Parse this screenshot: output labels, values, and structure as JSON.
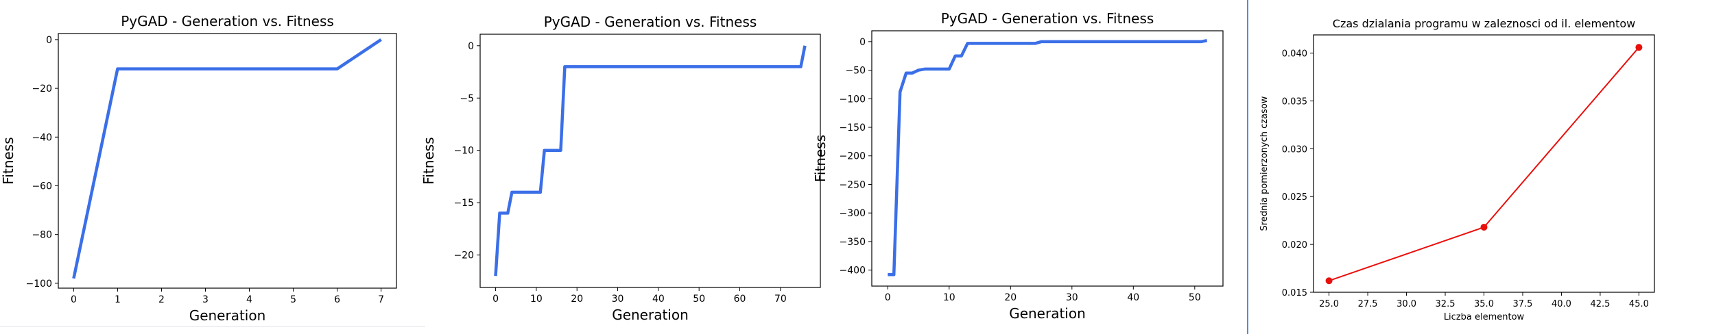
{
  "chart_data": [
    {
      "type": "line",
      "title": "PyGAD - Generation vs. Fitness",
      "xlabel": "Generation",
      "ylabel": "Fitness",
      "xlim": [
        -0.35,
        7.35
      ],
      "ylim": [
        -102,
        2.5
      ],
      "xticks": [
        0,
        1,
        2,
        3,
        4,
        5,
        6,
        7
      ],
      "yticks": [
        0,
        -20,
        -40,
        -60,
        -80,
        -100
      ],
      "color": "#3b6fe8",
      "series": [
        {
          "x": [
            0,
            1,
            2,
            3,
            4,
            5,
            6,
            7
          ],
          "y": [
            -98,
            -12,
            -12,
            -12,
            -12,
            -12,
            -12,
            0
          ]
        }
      ]
    },
    {
      "type": "line",
      "title": "PyGAD - Generation vs. Fitness",
      "xlabel": "Generation",
      "ylabel": "Fitness",
      "xlim": [
        -3.8,
        79.8
      ],
      "ylim": [
        -23.1,
        1.1
      ],
      "xticks": [
        0,
        10,
        20,
        30,
        40,
        50,
        60,
        70
      ],
      "yticks": [
        0,
        -5,
        -10,
        -15,
        -20
      ],
      "color": "#3b6fe8",
      "series": [
        {
          "x": [
            0,
            1,
            2,
            3,
            4,
            5,
            10,
            11,
            12,
            16,
            17,
            75,
            76
          ],
          "y": [
            -22,
            -16,
            -16,
            -16,
            -14,
            -14,
            -14,
            -14,
            -10,
            -10,
            -2,
            -2,
            0
          ]
        }
      ]
    },
    {
      "type": "line",
      "title": "PyGAD - Generation vs. Fitness",
      "xlabel": "Generation",
      "ylabel": "Fitness",
      "xlim": [
        -2.6,
        54.6
      ],
      "ylim": [
        -428,
        19
      ],
      "xticks": [
        0,
        10,
        20,
        30,
        40,
        50
      ],
      "yticks": [
        0,
        -50,
        -100,
        -150,
        -200,
        -250,
        -300,
        -350,
        -400
      ],
      "color": "#3b6fe8",
      "series": [
        {
          "x": [
            0,
            1,
            2,
            3,
            4,
            5,
            6,
            10,
            11,
            12,
            13,
            24,
            25,
            51,
            52
          ],
          "y": [
            -408,
            -408,
            -88,
            -55,
            -55,
            -50,
            -48,
            -48,
            -25,
            -25,
            -3,
            -3,
            0,
            0,
            2
          ]
        }
      ]
    },
    {
      "type": "line",
      "title": "Czas dzialania programu w zaleznosci od il. elementow",
      "xlabel": "Liczba elementow",
      "ylabel": "Srednia pomierzonych czasow",
      "xlim": [
        24,
        46
      ],
      "ylim": [
        0.015,
        0.0419
      ],
      "xticks": [
        25.0,
        27.5,
        30.0,
        32.5,
        35.0,
        37.5,
        40.0,
        42.5,
        45.0
      ],
      "yticks": [
        0.015,
        0.02,
        0.025,
        0.03,
        0.035,
        0.04
      ],
      "color": "#e8100c",
      "markers": true,
      "series": [
        {
          "x": [
            25,
            35,
            45
          ],
          "y": [
            0.0162,
            0.0218,
            0.0406
          ]
        }
      ]
    }
  ]
}
